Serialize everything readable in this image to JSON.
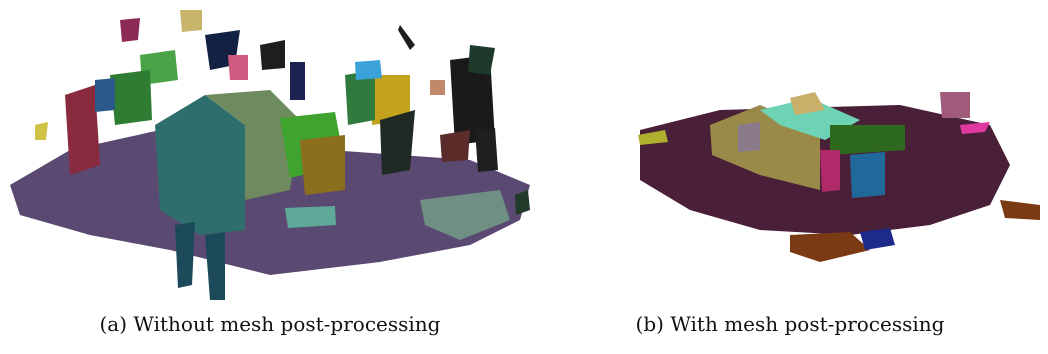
{
  "figure": {
    "subfigures": [
      {
        "caption": "(a) Without mesh post-processing"
      },
      {
        "caption": "(b) With mesh post-processing"
      }
    ]
  }
}
